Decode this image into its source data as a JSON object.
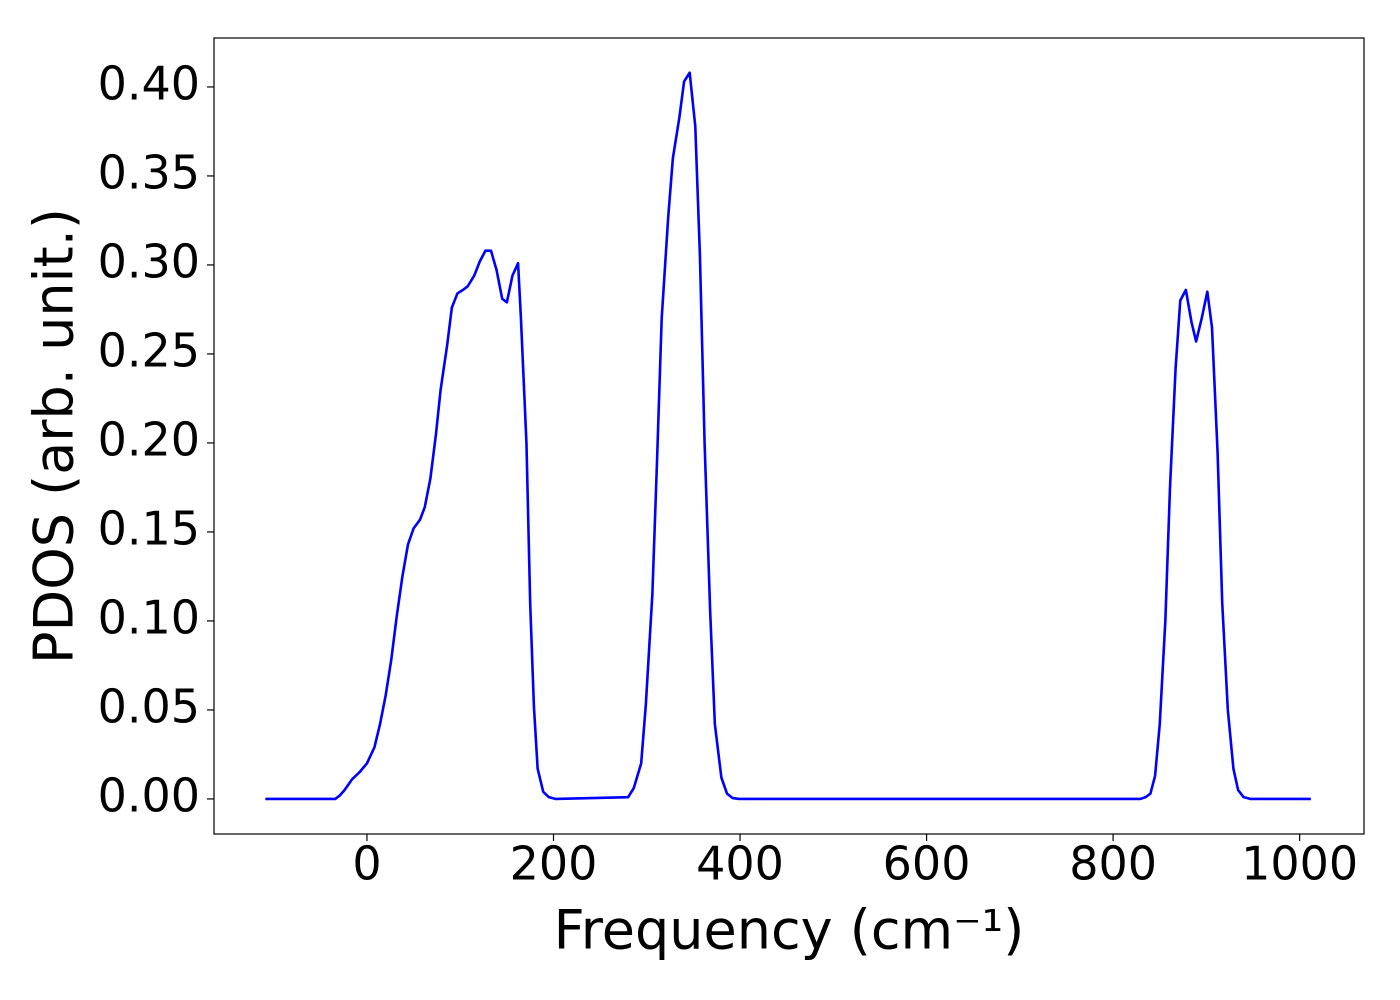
{
  "chart_data": {
    "type": "line",
    "xlabel": "Frequency (cm⁻¹)",
    "ylabel": "PDOS (arb. unit.)",
    "x": [
      -109,
      -34,
      -29,
      -24,
      -16,
      -8,
      0,
      8,
      14,
      20,
      26,
      32,
      38,
      44,
      50,
      57,
      62,
      68,
      74,
      79,
      86,
      91,
      97,
      103,
      108,
      115,
      121,
      127,
      133,
      139,
      145,
      150,
      156,
      162,
      165,
      171,
      175,
      179,
      183,
      189,
      195,
      202,
      280,
      286,
      294,
      299,
      306,
      311,
      316,
      323,
      328,
      335,
      340,
      346,
      352,
      357,
      362,
      368,
      373,
      380,
      386,
      392,
      399,
      829,
      835,
      840,
      845,
      850,
      856,
      861,
      867,
      872,
      878,
      884,
      889,
      895,
      901,
      906,
      912,
      917,
      923,
      929,
      934,
      940,
      947,
      1012
    ],
    "series": [
      {
        "name": "PDOS",
        "color": "#0000ff",
        "values": [
          0,
          0,
          0.002,
          0.005,
          0.011,
          0.015,
          0.02,
          0.029,
          0.042,
          0.058,
          0.078,
          0.103,
          0.125,
          0.143,
          0.152,
          0.157,
          0.164,
          0.18,
          0.205,
          0.23,
          0.255,
          0.276,
          0.284,
          0.286,
          0.288,
          0.294,
          0.302,
          0.308,
          0.308,
          0.297,
          0.281,
          0.279,
          0.294,
          0.301,
          0.271,
          0.2,
          0.11,
          0.052,
          0.017,
          0.004,
          0.001,
          0,
          0.001,
          0.006,
          0.02,
          0.053,
          0.115,
          0.19,
          0.27,
          0.327,
          0.36,
          0.383,
          0.403,
          0.408,
          0.378,
          0.305,
          0.2,
          0.105,
          0.042,
          0.012,
          0.003,
          0.0005,
          0,
          0,
          0.001,
          0.003,
          0.013,
          0.042,
          0.1,
          0.175,
          0.242,
          0.28,
          0.286,
          0.268,
          0.257,
          0.27,
          0.285,
          0.265,
          0.195,
          0.11,
          0.05,
          0.017,
          0.005,
          0.001,
          0,
          0
        ]
      }
    ],
    "xlim": [
      -164,
      1069
    ],
    "ylim": [
      -0.0197,
      0.4275
    ],
    "xticks": [
      0,
      200,
      400,
      600,
      800,
      1000
    ],
    "yticks": [
      {
        "value": 0,
        "label": "0.00"
      },
      {
        "value": 0.05,
        "label": "0.05"
      },
      {
        "value": 0.1,
        "label": "0.10"
      },
      {
        "value": 0.15,
        "label": "0.15"
      },
      {
        "value": 0.2,
        "label": "0.20"
      },
      {
        "value": 0.25,
        "label": "0.25"
      },
      {
        "value": 0.3,
        "label": "0.30"
      },
      {
        "value": 0.35,
        "label": "0.35"
      },
      {
        "value": 0.4,
        "label": "0.40"
      }
    ],
    "grid": false
  }
}
